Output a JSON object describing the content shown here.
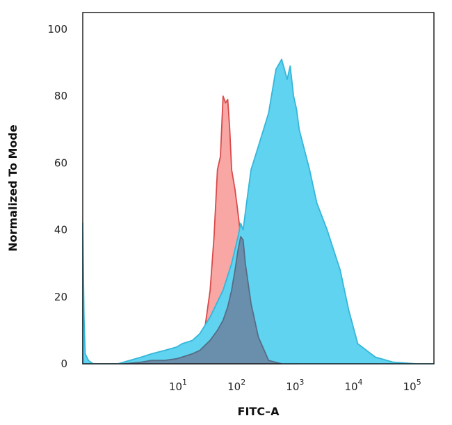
{
  "chart_data": {
    "type": "area",
    "title": "",
    "xlabel": "FITC–A",
    "ylabel": "Normalized To Mode",
    "x_scale": "log",
    "xlim": [
      0.2,
      200000
    ],
    "ylim": [
      0,
      105
    ],
    "y_ticks": [
      0,
      20,
      40,
      60,
      80,
      100
    ],
    "x_ticks": [
      {
        "base": "10",
        "exp": "1",
        "value": 10
      },
      {
        "base": "10",
        "exp": "2",
        "value": 100
      },
      {
        "base": "10",
        "exp": "3",
        "value": 1000
      },
      {
        "base": "10",
        "exp": "4",
        "value": 10000
      },
      {
        "base": "10",
        "exp": "5",
        "value": 100000
      }
    ],
    "grid": false,
    "legend": "none",
    "series": [
      {
        "color_fill": "#f8a7a5",
        "color_line": "#d94a4a",
        "x": [
          0.2,
          0.6,
          1,
          2,
          5,
          10,
          20,
          25,
          30,
          35,
          40,
          45,
          50,
          55,
          60,
          65,
          70,
          80,
          90,
          100,
          120,
          150,
          200,
          300,
          500,
          1000
        ],
        "y": [
          0,
          0,
          0,
          0.5,
          1,
          1,
          5,
          12,
          22,
          38,
          58,
          62,
          80,
          78,
          79,
          70,
          58,
          52,
          45,
          38,
          26,
          14,
          6,
          0.5,
          0,
          0
        ]
      },
      {
        "color_fill": "#5fd3ef",
        "color_line": "#36b6da",
        "x": [
          0.2,
          0.21,
          0.22,
          0.25,
          0.3,
          0.5,
          0.8,
          1,
          2,
          3,
          5,
          8,
          10,
          15,
          20,
          30,
          50,
          70,
          90,
          100,
          110,
          130,
          150,
          200,
          300,
          400,
          500,
          560,
          620,
          700,
          800,
          900,
          1000,
          1500,
          2000,
          3000,
          5000,
          7000,
          10000,
          20000,
          40000,
          100000,
          200000
        ],
        "y": [
          42,
          14,
          3,
          1,
          0,
          0,
          0,
          0.5,
          2,
          3,
          4,
          5,
          6,
          7,
          9,
          14,
          22,
          30,
          38,
          42,
          40,
          50,
          58,
          65,
          75,
          88,
          91,
          88,
          85,
          89,
          80,
          76,
          70,
          58,
          48,
          40,
          28,
          16,
          6,
          2,
          0.5,
          0,
          0
        ]
      },
      {
        "color_fill": "#6a8fad",
        "color_line": "#556d85",
        "x": [
          1,
          2,
          3,
          5,
          8,
          10,
          15,
          20,
          30,
          40,
          50,
          60,
          70,
          80,
          90,
          100,
          110,
          120,
          150,
          200,
          300,
          500
        ],
        "y": [
          0,
          0.5,
          1,
          1,
          1.5,
          2,
          3,
          4,
          7,
          10,
          13,
          17,
          22,
          28,
          34,
          38,
          37,
          30,
          18,
          8,
          1,
          0
        ]
      }
    ]
  }
}
